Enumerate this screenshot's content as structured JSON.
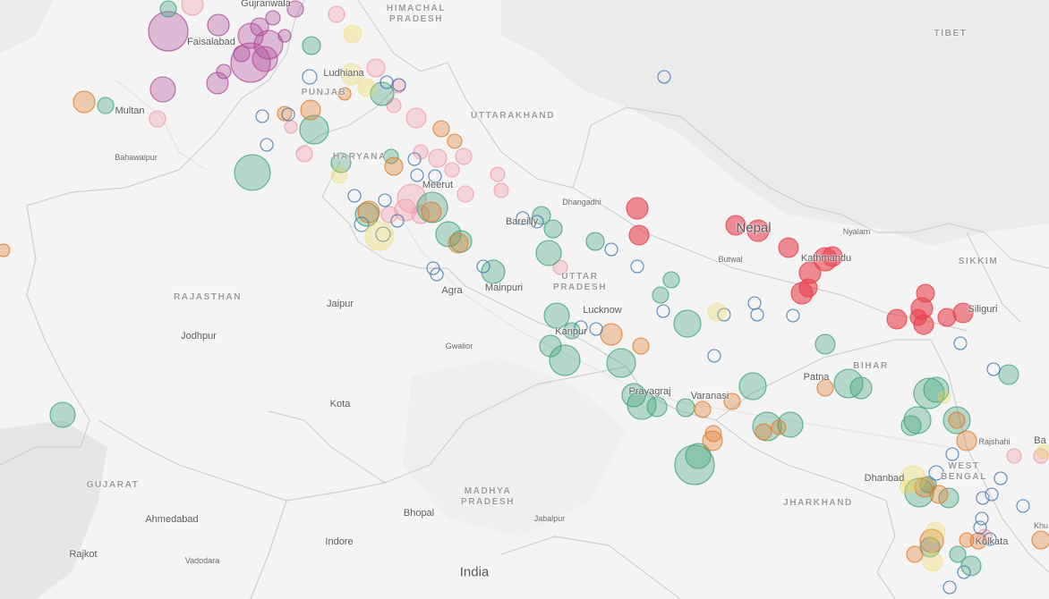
{
  "map": {
    "region_labels": [
      {
        "id": "himachal",
        "text": "HIMACHAL\nPRADESH"
      },
      {
        "id": "punjab",
        "text": "PUNJAB"
      },
      {
        "id": "haryana",
        "text": "HARYANA"
      },
      {
        "id": "uttarakhand",
        "text": "UTTARAKHAND"
      },
      {
        "id": "tibet",
        "text": "TIBET"
      },
      {
        "id": "uttarpradesh",
        "text": "UTTAR\nPRADESH"
      },
      {
        "id": "rajasthan",
        "text": "RAJASTHAN"
      },
      {
        "id": "bihar",
        "text": "BIHAR"
      },
      {
        "id": "sikkim",
        "text": "SIKKIM"
      },
      {
        "id": "gujarat",
        "text": "GUJARAT"
      },
      {
        "id": "madhya",
        "text": "MADHYA\nPRADESH"
      },
      {
        "id": "jharkhand",
        "text": "JHARKHAND"
      },
      {
        "id": "westbengal",
        "text": "WEST\nBENGAL"
      }
    ],
    "city_labels": [
      {
        "id": "gujranwala",
        "text": "Gujranwala"
      },
      {
        "id": "faisalabad",
        "text": "Faisalabad"
      },
      {
        "id": "multan",
        "text": "Multan"
      },
      {
        "id": "bahawalpur",
        "text": "Bahawalpur"
      },
      {
        "id": "ludhiana",
        "text": "Ludhiana"
      },
      {
        "id": "meerut",
        "text": "Meerut"
      },
      {
        "id": "bareilly",
        "text": "Bareilly"
      },
      {
        "id": "dhangadhi",
        "text": "Dhangadhi"
      },
      {
        "id": "nepal",
        "text": "Nepal"
      },
      {
        "id": "nyalam",
        "text": "Nyalam"
      },
      {
        "id": "butwal",
        "text": "Butwal"
      },
      {
        "id": "kathmandu",
        "text": "Kathmandu"
      },
      {
        "id": "siliguri",
        "text": "Siliguri"
      },
      {
        "id": "agra",
        "text": "Agra"
      },
      {
        "id": "mainpuri",
        "text": "Mainpuri"
      },
      {
        "id": "lucknow",
        "text": "Lucknow"
      },
      {
        "id": "kanpur",
        "text": "Kanpur"
      },
      {
        "id": "jaipur",
        "text": "Jaipur"
      },
      {
        "id": "jodhpur",
        "text": "Jodhpur"
      },
      {
        "id": "gwalior",
        "text": "Gwalior"
      },
      {
        "id": "prayagraj",
        "text": "Prayagraj"
      },
      {
        "id": "varanasi",
        "text": "Varanasi"
      },
      {
        "id": "patna",
        "text": "Patna"
      },
      {
        "id": "kota",
        "text": "Kota"
      },
      {
        "id": "rajshahi",
        "text": "Rajshahi"
      },
      {
        "id": "dhanbad",
        "text": "Dhanbad"
      },
      {
        "id": "bhopal",
        "text": "Bhopal"
      },
      {
        "id": "jabalpur",
        "text": "Jabalpur"
      },
      {
        "id": "ahmedabad",
        "text": "Ahmedabad"
      },
      {
        "id": "indore",
        "text": "Indore"
      },
      {
        "id": "rajkot",
        "text": "Rajkot"
      },
      {
        "id": "vadodara",
        "text": "Vadodara"
      },
      {
        "id": "india",
        "text": "India"
      },
      {
        "id": "ba",
        "text": "Ba"
      },
      {
        "id": "khu",
        "text": "Khu"
      },
      {
        "id": "kolkata",
        "text": "Kolkata"
      }
    ],
    "colors": {
      "land": "#f4f4f4",
      "border": "#d0d0d0",
      "terrain": "#e4e4e4",
      "red": "#e8414e",
      "green": "#3fa37a",
      "orange": "#e07b2a",
      "pink": "#f09aa6",
      "purple": "#b04a9a",
      "blue": "#3a73b0",
      "yellow": "#efd34a"
    }
  }
}
